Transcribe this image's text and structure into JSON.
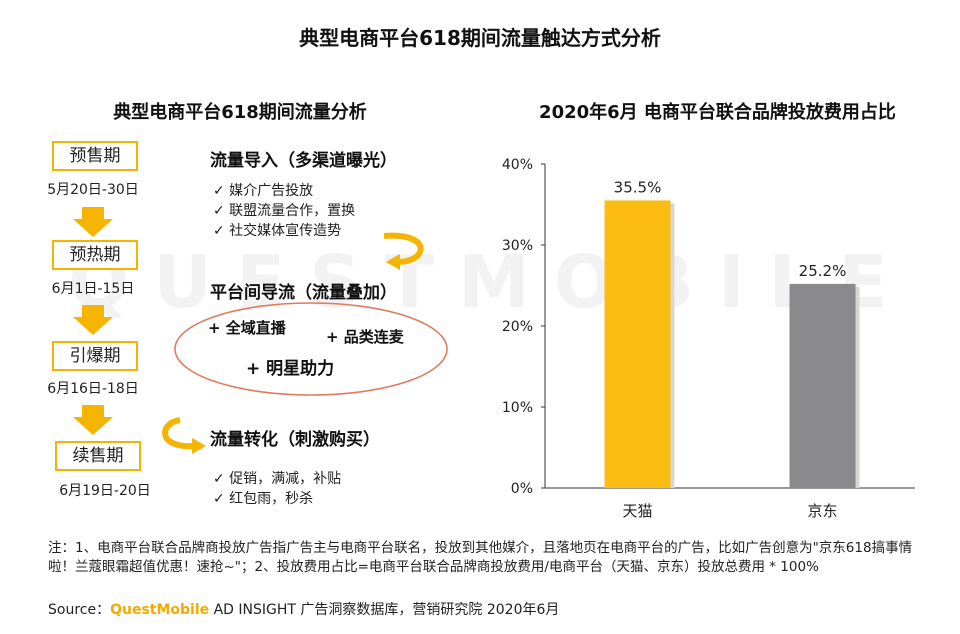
{
  "main_title": "典型电商平台618期间流量触达方式分析",
  "left_panel": {
    "title": "典型电商平台618期间流量分析",
    "stages": [
      {
        "label": "预售期",
        "date": "5月20日-30日"
      },
      {
        "label": "预热期",
        "date": "6月1日-15日"
      },
      {
        "label": "引爆期",
        "date": "6月16日-18日"
      },
      {
        "label": "续售期",
        "date": "6月19日-20日"
      }
    ],
    "section1": {
      "title": "流量导入（多渠道曝光）",
      "items": [
        "✓ 媒介广告投放",
        "✓ 联盟流量合作，置换",
        "✓ 社交媒体宣传造势"
      ]
    },
    "section2": {
      "title": "平台间导流（流量叠加）",
      "items": [
        "+ 全域直播",
        "+ 品类连麦",
        "+ 明星助力"
      ]
    },
    "section3": {
      "title": "流量转化（刺激购买）",
      "items": [
        "✓ 促销，满减，补贴",
        "✓ 红包雨，秒杀"
      ]
    },
    "colors": {
      "accent": "#f4b400",
      "ellipse": "#e07a5f"
    }
  },
  "watermark": "QUESTMOBILE",
  "chart_data": {
    "type": "bar",
    "title": "2020年6月 电商平台联合品牌投放费用占比",
    "categories": [
      "天猫",
      "京东"
    ],
    "values": [
      35.5,
      25.2
    ],
    "value_labels": [
      "35.5%",
      "25.2%"
    ],
    "bar_colors": [
      "#fbbc14",
      "#8a8a8c"
    ],
    "ylim": [
      0,
      40
    ],
    "yticks": [
      0,
      10,
      20,
      30,
      40
    ],
    "ytick_labels": [
      "0%",
      "10%",
      "20%",
      "30%",
      "40%"
    ],
    "grid": false,
    "xlabel": "",
    "ylabel": ""
  },
  "footer": {
    "notes": "注：1、电商平台联合品牌商投放广告指广告主与电商平台联名，投放到其他媒介，且落地页在电商平台的广告，比如广告创意为\"京东618搞事情啦！兰蔻眼霜超值优惠！速抢~\"；2、投放费用占比=电商平台联合品牌商投放费用/电商平台（天猫、京东）投放总费用 * 100%",
    "source_prefix": "Source：",
    "source_brand": "QuestMobile",
    "source_rest": " AD INSIGHT 广告洞察数据库，营销研究院 2020年6月"
  }
}
